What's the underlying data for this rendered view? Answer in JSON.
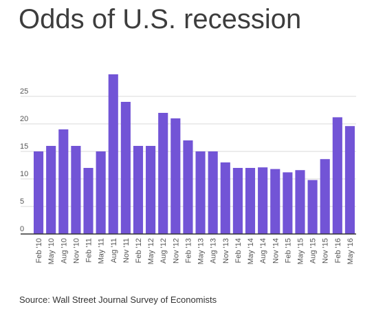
{
  "title": "Odds of U.S. recession",
  "source": "Source: Wall Street Journal Survey of Economists",
  "chart_data": {
    "type": "bar",
    "title": "Odds of U.S. recession",
    "xlabel": "",
    "ylabel": "",
    "ylim": [
      0,
      30
    ],
    "yticks": [
      0,
      5,
      10,
      15,
      20,
      25
    ],
    "grid": true,
    "bar_color": "#7254d6",
    "grid_color": "#d9d9d9",
    "categories": [
      "Feb '10",
      "May '10",
      "Aug '10",
      "Nov '10",
      "Feb '11",
      "May '11",
      "Aug '11",
      "Nov '11",
      "Feb '12",
      "May '12",
      "Aug '12",
      "Nov '12",
      "Feb '13",
      "May '13",
      "Aug '13",
      "Nov '13",
      "Feb '14",
      "May '14",
      "Aug '14",
      "Nov '14",
      "Feb '15",
      "May '15",
      "Aug '15",
      "Nov '15",
      "Feb '16",
      "May '16"
    ],
    "values": [
      15,
      16,
      19,
      16,
      12,
      15,
      29,
      24,
      16,
      16,
      22,
      21,
      17,
      15,
      15,
      13,
      12,
      12,
      12.1,
      11.8,
      11.2,
      11.6,
      9.8,
      13.6,
      21.2,
      19.6
    ]
  }
}
